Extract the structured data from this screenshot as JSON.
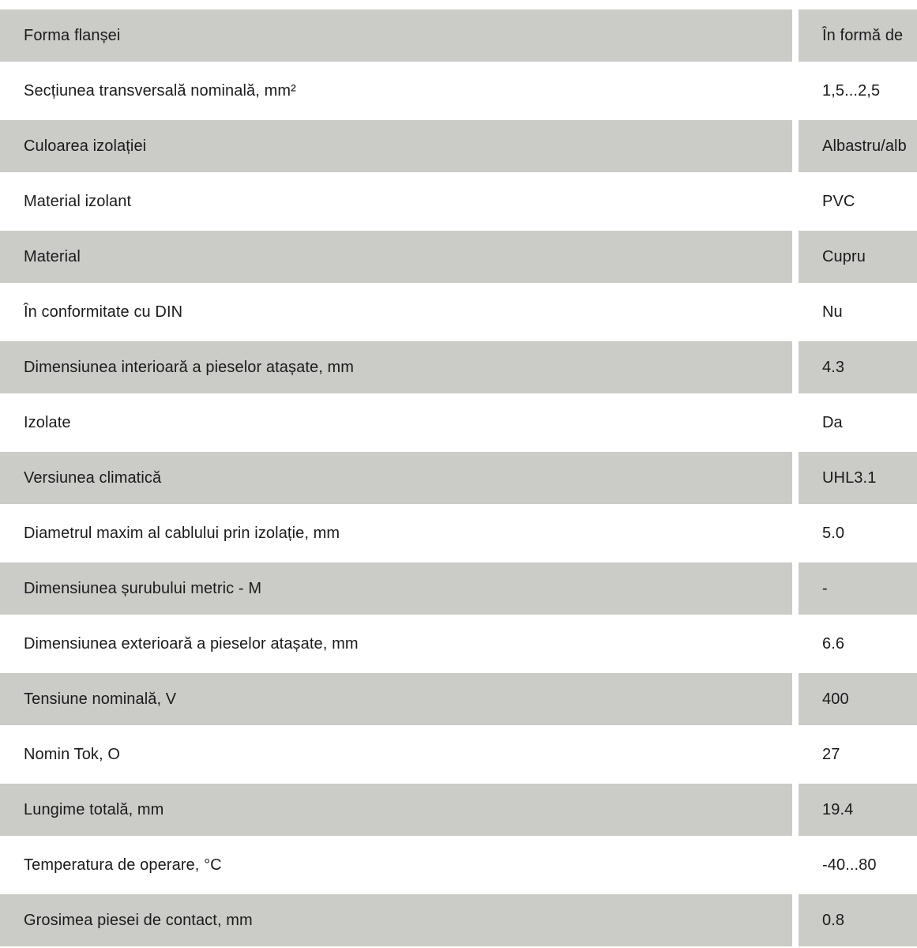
{
  "colors": {
    "row_alt_background": "#cbccc7",
    "row_background": "#ffffff",
    "text": "#1b1b1e"
  },
  "table": {
    "rows": [
      {
        "label": "Forma flanșei",
        "value": "În formă de"
      },
      {
        "label": "Secțiunea transversală nominală, mm²",
        "value": "1,5...2,5"
      },
      {
        "label": "Culoarea izolației",
        "value": "Albastru/alb"
      },
      {
        "label": "Material izolant",
        "value": "PVC"
      },
      {
        "label": "Material",
        "value": "Cupru"
      },
      {
        "label": "În conformitate cu DIN",
        "value": "Nu"
      },
      {
        "label": "Dimensiunea interioară a pieselor atașate, mm",
        "value": "4.3"
      },
      {
        "label": "Izolate",
        "value": "Da"
      },
      {
        "label": "Versiunea climatică",
        "value": "UHL3.1"
      },
      {
        "label": "Diametrul maxim al cablului prin izolație, mm",
        "value": "5.0"
      },
      {
        "label": "Dimensiunea șurubului metric - M",
        "value": "-"
      },
      {
        "label": "Dimensiunea exterioară a pieselor atașate, mm",
        "value": "6.6"
      },
      {
        "label": "Tensiune nominală, V",
        "value": "400"
      },
      {
        "label": "Nomin Tok, O",
        "value": "27"
      },
      {
        "label": "Lungime totală, mm",
        "value": "19.4"
      },
      {
        "label": "Temperatura de operare, °C",
        "value": "-40...80"
      },
      {
        "label": "Grosimea piesei de contact, mm",
        "value": "0.8"
      }
    ]
  }
}
